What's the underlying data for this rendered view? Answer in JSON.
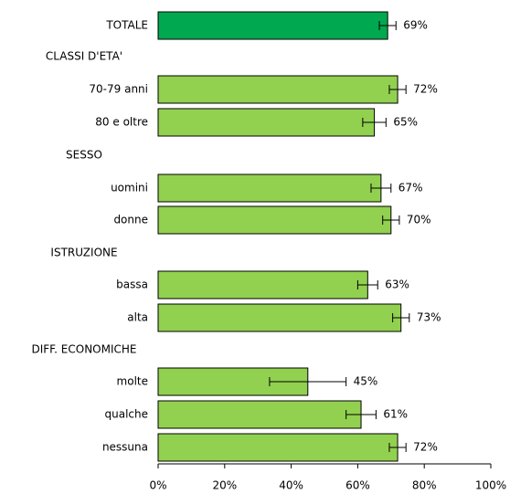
{
  "chart_data": {
    "type": "bar",
    "categories": [
      "TOTALE",
      "CLASSI D'ETA'",
      "70-79 anni",
      "80 e oltre",
      "SESSO",
      "uomini",
      "donne",
      "ISTRUZIONE",
      "bassa",
      "alta",
      "DIFF. ECONOMICHE",
      "molte",
      "qualche",
      "nessuna"
    ],
    "values": [
      69,
      null,
      72,
      65,
      null,
      67,
      70,
      null,
      63,
      73,
      null,
      45,
      61,
      72
    ],
    "value_labels": [
      "69%",
      null,
      "72%",
      "65%",
      null,
      "67%",
      "70%",
      null,
      "63%",
      "73%",
      null,
      "45%",
      "61%",
      "72%"
    ],
    "errors": [
      2.5,
      null,
      2.5,
      3.5,
      null,
      3,
      2.5,
      null,
      3,
      2.5,
      null,
      11.5,
      4.5,
      2.5
    ],
    "colors": [
      "#00a84f",
      null,
      "#92d050",
      "#92d050",
      null,
      "#92d050",
      "#92d050",
      null,
      "#92d050",
      "#92d050",
      null,
      "#92d050",
      "#92d050",
      "#92d050"
    ],
    "xlim": [
      0,
      100
    ],
    "xticks": [
      {
        "value": 0,
        "label": "0%"
      },
      {
        "value": 20,
        "label": "20%"
      },
      {
        "value": 40,
        "label": "40%"
      },
      {
        "value": 60,
        "label": "60%"
      },
      {
        "value": 80,
        "label": "80%"
      },
      {
        "value": 100,
        "label": "100%"
      }
    ]
  }
}
